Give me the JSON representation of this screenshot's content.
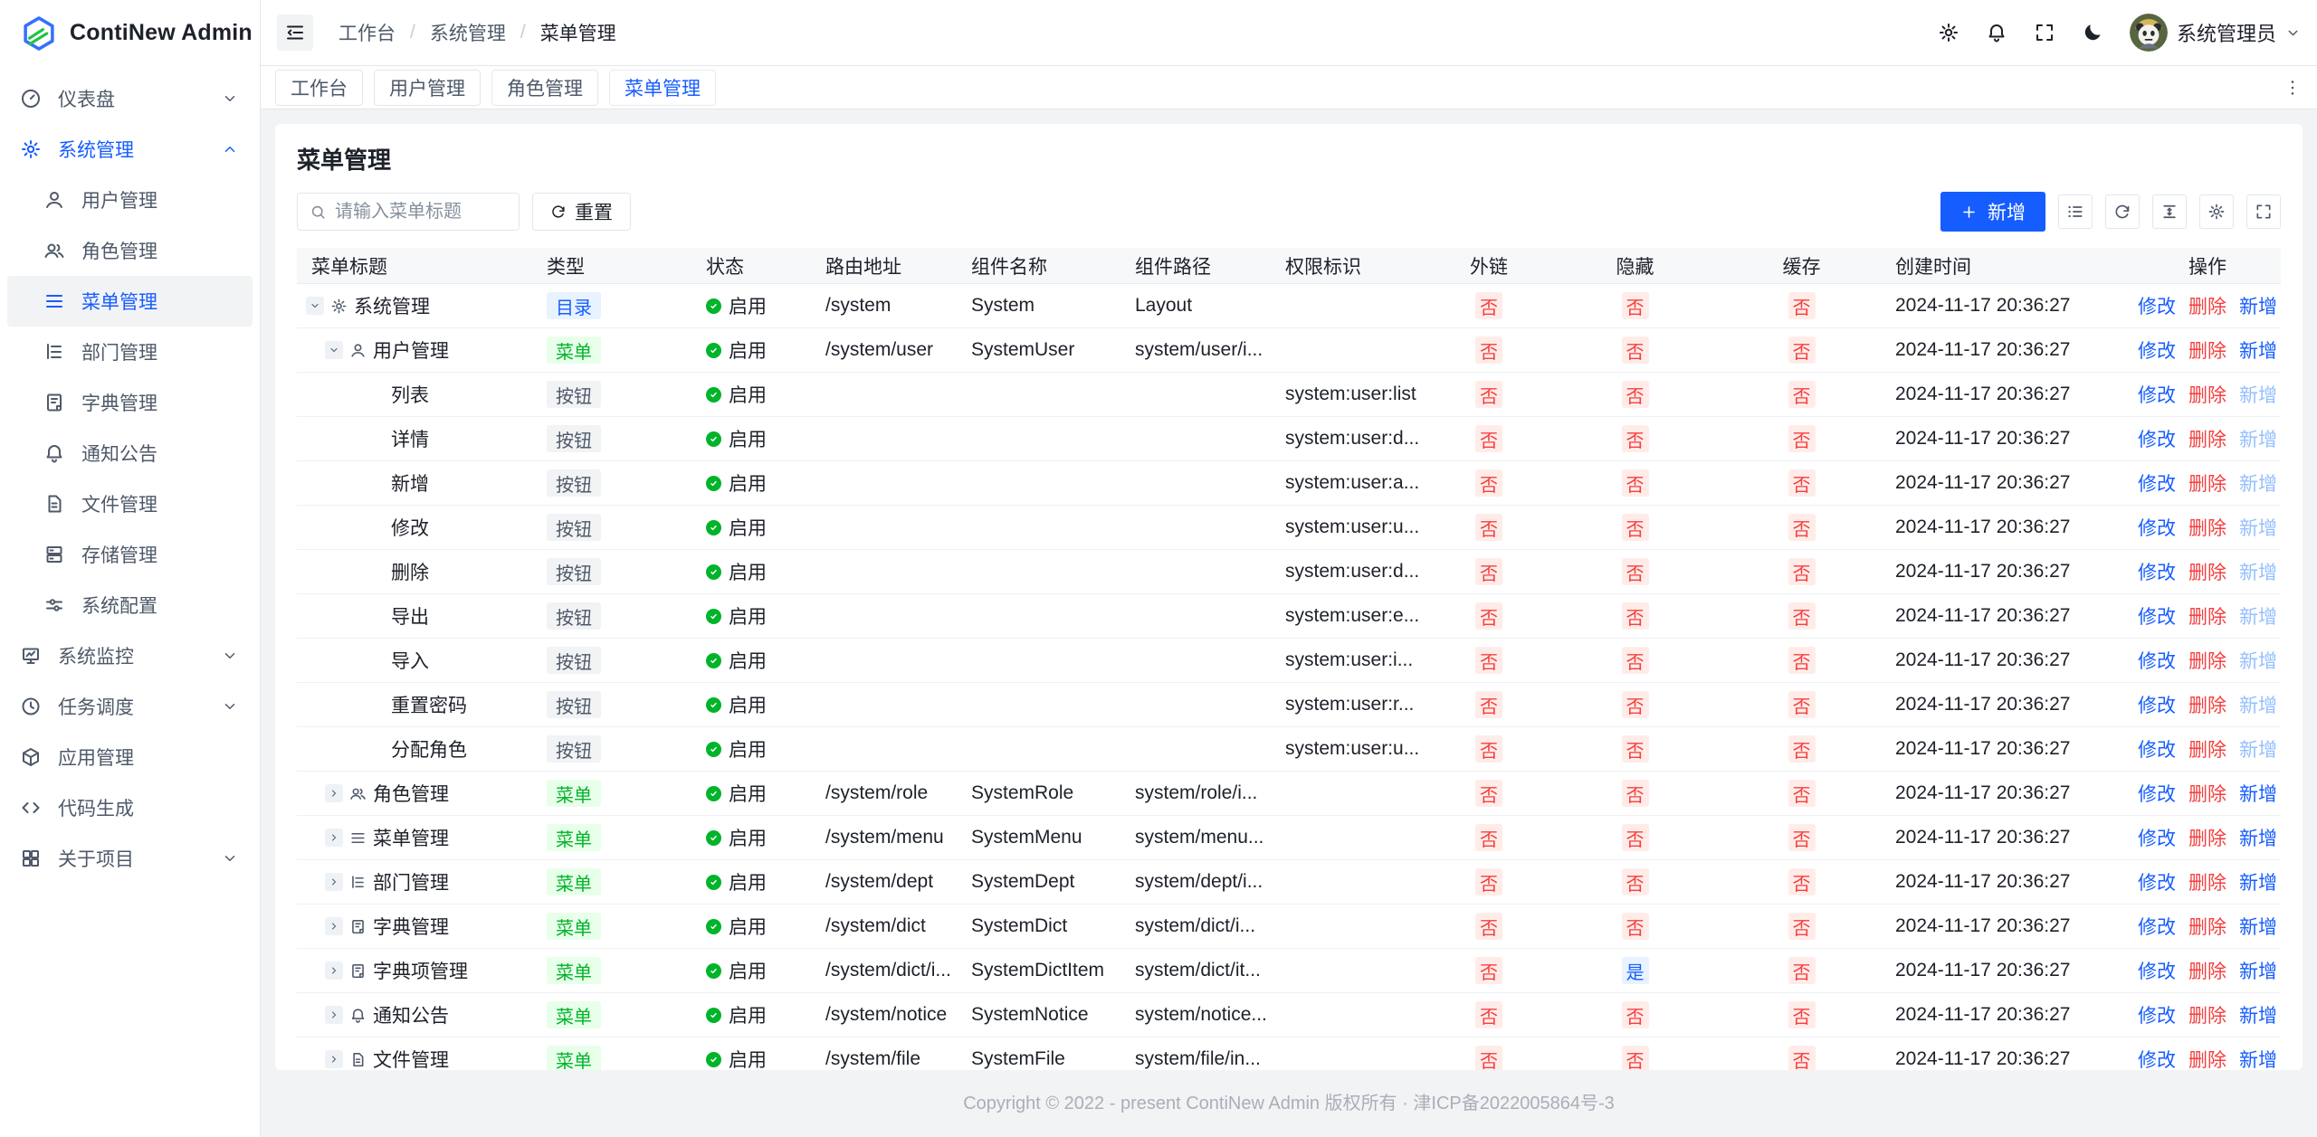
{
  "app": {
    "name": "ContiNew Admin"
  },
  "topbar": {
    "breadcrumbs": [
      "工作台",
      "系统管理",
      "菜单管理"
    ],
    "icons": [
      "settings-icon",
      "bell-icon",
      "fullscreen-icon",
      "moon-icon"
    ],
    "user": {
      "name": "系统管理员"
    }
  },
  "tabs": [
    {
      "key": "workbench",
      "label": "工作台",
      "active": false
    },
    {
      "key": "user",
      "label": "用户管理",
      "active": false
    },
    {
      "key": "role",
      "label": "角色管理",
      "active": false
    },
    {
      "key": "menu",
      "label": "菜单管理",
      "active": true
    }
  ],
  "sidebar": {
    "items": [
      {
        "key": "dashboard",
        "label": "仪表盘",
        "icon": "dashboard",
        "depth": 0,
        "chevron": "down"
      },
      {
        "key": "system",
        "label": "系统管理",
        "icon": "settings",
        "depth": 0,
        "chevron": "up",
        "highlight": true
      },
      {
        "key": "user",
        "label": "用户管理",
        "icon": "user",
        "depth": 1
      },
      {
        "key": "role",
        "label": "角色管理",
        "icon": "users",
        "depth": 1
      },
      {
        "key": "menu",
        "label": "菜单管理",
        "icon": "menu",
        "depth": 1,
        "active": true
      },
      {
        "key": "dept",
        "label": "部门管理",
        "icon": "dept",
        "depth": 1
      },
      {
        "key": "dict",
        "label": "字典管理",
        "icon": "dict",
        "depth": 1
      },
      {
        "key": "notice",
        "label": "通知公告",
        "icon": "bell",
        "depth": 1
      },
      {
        "key": "file",
        "label": "文件管理",
        "icon": "file",
        "depth": 1
      },
      {
        "key": "storage",
        "label": "存储管理",
        "icon": "storage",
        "depth": 1
      },
      {
        "key": "config",
        "label": "系统配置",
        "icon": "config",
        "depth": 1
      },
      {
        "key": "monitor",
        "label": "系统监控",
        "icon": "monitor",
        "depth": 0,
        "chevron": "down"
      },
      {
        "key": "schedule",
        "label": "任务调度",
        "icon": "clock",
        "depth": 0,
        "chevron": "down"
      },
      {
        "key": "app",
        "label": "应用管理",
        "icon": "apps",
        "depth": 0
      },
      {
        "key": "codegen",
        "label": "代码生成",
        "icon": "code",
        "depth": 0
      },
      {
        "key": "about",
        "label": "关于项目",
        "icon": "about",
        "depth": 0,
        "chevron": "down"
      }
    ]
  },
  "page": {
    "title": "菜单管理",
    "search": {
      "placeholder": "请输入菜单标题"
    },
    "reset_label": "重置",
    "toolbar": {
      "add_label": "新增",
      "icon_buttons": [
        "list-icon",
        "refresh-icon",
        "line-height-icon",
        "settings-icon",
        "fullscreen-icon"
      ]
    }
  },
  "table": {
    "columns": [
      {
        "key": "menu-title",
        "label": "菜单标题"
      },
      {
        "key": "type",
        "label": "类型"
      },
      {
        "key": "status",
        "label": "状态"
      },
      {
        "key": "route",
        "label": "路由地址"
      },
      {
        "key": "component-name",
        "label": "组件名称"
      },
      {
        "key": "component-path",
        "label": "组件路径"
      },
      {
        "key": "permission",
        "label": "权限标识"
      },
      {
        "key": "external",
        "label": "外链"
      },
      {
        "key": "hidden",
        "label": "隐藏"
      },
      {
        "key": "cache",
        "label": "缓存"
      },
      {
        "key": "created",
        "label": "创建时间"
      },
      {
        "key": "operations",
        "label": "操作"
      }
    ],
    "ops": {
      "edit": "修改",
      "delete": "删除",
      "add": "新增"
    },
    "rows": [
      {
        "title": "系统管理",
        "icon": "settings",
        "depth": 0,
        "kind": "dir",
        "expand": "down",
        "type": "目录",
        "status": "启用",
        "route": "/system",
        "component_name": "System",
        "component_path": "Layout",
        "permission": "",
        "external": "否",
        "hidden": "否",
        "cache": "否",
        "created": "2024-11-17 20:36:27",
        "add_disabled": false
      },
      {
        "title": "用户管理",
        "icon": "user",
        "depth": 1,
        "kind": "menu",
        "expand": "down",
        "type": "菜单",
        "status": "启用",
        "route": "/system/user",
        "component_name": "SystemUser",
        "component_path": "system/user/i...",
        "permission": "",
        "external": "否",
        "hidden": "否",
        "cache": "否",
        "created": "2024-11-17 20:36:27",
        "add_disabled": false
      },
      {
        "title": "列表",
        "kind": "btn",
        "type": "按钮",
        "status": "启用",
        "permission": "system:user:list",
        "external": "否",
        "hidden": "否",
        "cache": "否",
        "created": "2024-11-17 20:36:27",
        "add_disabled": true
      },
      {
        "title": "详情",
        "kind": "btn",
        "type": "按钮",
        "status": "启用",
        "permission": "system:user:d...",
        "external": "否",
        "hidden": "否",
        "cache": "否",
        "created": "2024-11-17 20:36:27",
        "add_disabled": true
      },
      {
        "title": "新增",
        "kind": "btn",
        "type": "按钮",
        "status": "启用",
        "permission": "system:user:a...",
        "external": "否",
        "hidden": "否",
        "cache": "否",
        "created": "2024-11-17 20:36:27",
        "add_disabled": true
      },
      {
        "title": "修改",
        "kind": "btn",
        "type": "按钮",
        "status": "启用",
        "permission": "system:user:u...",
        "external": "否",
        "hidden": "否",
        "cache": "否",
        "created": "2024-11-17 20:36:27",
        "add_disabled": true
      },
      {
        "title": "删除",
        "kind": "btn",
        "type": "按钮",
        "status": "启用",
        "permission": "system:user:d...",
        "external": "否",
        "hidden": "否",
        "cache": "否",
        "created": "2024-11-17 20:36:27",
        "add_disabled": true
      },
      {
        "title": "导出",
        "kind": "btn",
        "type": "按钮",
        "status": "启用",
        "permission": "system:user:e...",
        "external": "否",
        "hidden": "否",
        "cache": "否",
        "created": "2024-11-17 20:36:27",
        "add_disabled": true
      },
      {
        "title": "导入",
        "kind": "btn",
        "type": "按钮",
        "status": "启用",
        "permission": "system:user:i...",
        "external": "否",
        "hidden": "否",
        "cache": "否",
        "created": "2024-11-17 20:36:27",
        "add_disabled": true
      },
      {
        "title": "重置密码",
        "kind": "btn",
        "type": "按钮",
        "status": "启用",
        "permission": "system:user:r...",
        "external": "否",
        "hidden": "否",
        "cache": "否",
        "created": "2024-11-17 20:36:27",
        "add_disabled": true
      },
      {
        "title": "分配角色",
        "kind": "btn",
        "type": "按钮",
        "status": "启用",
        "permission": "system:user:u...",
        "external": "否",
        "hidden": "否",
        "cache": "否",
        "created": "2024-11-17 20:36:27",
        "add_disabled": true
      },
      {
        "title": "角色管理",
        "icon": "users",
        "depth": 1,
        "kind": "menu",
        "expand": "right",
        "type": "菜单",
        "status": "启用",
        "route": "/system/role",
        "component_name": "SystemRole",
        "component_path": "system/role/i...",
        "permission": "",
        "external": "否",
        "hidden": "否",
        "cache": "否",
        "created": "2024-11-17 20:36:27",
        "add_disabled": false
      },
      {
        "title": "菜单管理",
        "icon": "menu",
        "depth": 1,
        "kind": "menu",
        "expand": "right",
        "type": "菜单",
        "status": "启用",
        "route": "/system/menu",
        "component_name": "SystemMenu",
        "component_path": "system/menu...",
        "permission": "",
        "external": "否",
        "hidden": "否",
        "cache": "否",
        "created": "2024-11-17 20:36:27",
        "add_disabled": false
      },
      {
        "title": "部门管理",
        "icon": "dept",
        "depth": 1,
        "kind": "menu",
        "expand": "right",
        "type": "菜单",
        "status": "启用",
        "route": "/system/dept",
        "component_name": "SystemDept",
        "component_path": "system/dept/i...",
        "permission": "",
        "external": "否",
        "hidden": "否",
        "cache": "否",
        "created": "2024-11-17 20:36:27",
        "add_disabled": false
      },
      {
        "title": "字典管理",
        "icon": "dict",
        "depth": 1,
        "kind": "menu",
        "expand": "right",
        "type": "菜单",
        "status": "启用",
        "route": "/system/dict",
        "component_name": "SystemDict",
        "component_path": "system/dict/i...",
        "permission": "",
        "external": "否",
        "hidden": "否",
        "cache": "否",
        "created": "2024-11-17 20:36:27",
        "add_disabled": false
      },
      {
        "title": "字典项管理",
        "icon": "dict",
        "depth": 1,
        "kind": "menu",
        "expand": "right",
        "type": "菜单",
        "status": "启用",
        "route": "/system/dict/i...",
        "component_name": "SystemDictItem",
        "component_path": "system/dict/it...",
        "permission": "",
        "external": "否",
        "hidden": "是",
        "cache": "否",
        "created": "2024-11-17 20:36:27",
        "add_disabled": false
      },
      {
        "title": "通知公告",
        "icon": "bell",
        "depth": 1,
        "kind": "menu",
        "expand": "right",
        "type": "菜单",
        "status": "启用",
        "route": "/system/notice",
        "component_name": "SystemNotice",
        "component_path": "system/notice...",
        "permission": "",
        "external": "否",
        "hidden": "否",
        "cache": "否",
        "created": "2024-11-17 20:36:27",
        "add_disabled": false
      },
      {
        "title": "文件管理",
        "icon": "file",
        "depth": 1,
        "kind": "menu",
        "expand": "right",
        "type": "菜单",
        "status": "启用",
        "route": "/system/file",
        "component_name": "SystemFile",
        "component_path": "system/file/in...",
        "permission": "",
        "external": "否",
        "hidden": "否",
        "cache": "否",
        "created": "2024-11-17 20:36:27",
        "add_disabled": false
      }
    ]
  },
  "footer": {
    "copyright": "Copyright © 2022 - present ContiNew Admin 版权所有 · 津ICP备2022005864号-3"
  },
  "colors": {
    "primary": "#165dff",
    "success": "#00b42a",
    "danger": "#f53f3f",
    "dir_badge_bg": "#e8f3ff",
    "menu_badge_bg": "#e8ffea",
    "btn_badge_bg": "#f2f3f5",
    "no_badge_bg": "#ffece8",
    "yes_badge_bg": "#e8f3ff",
    "disabled_link": "#94bfff",
    "border": "#e5e6eb",
    "content_bg": "#f2f3f5",
    "thead_bg": "#f7f8fa"
  }
}
